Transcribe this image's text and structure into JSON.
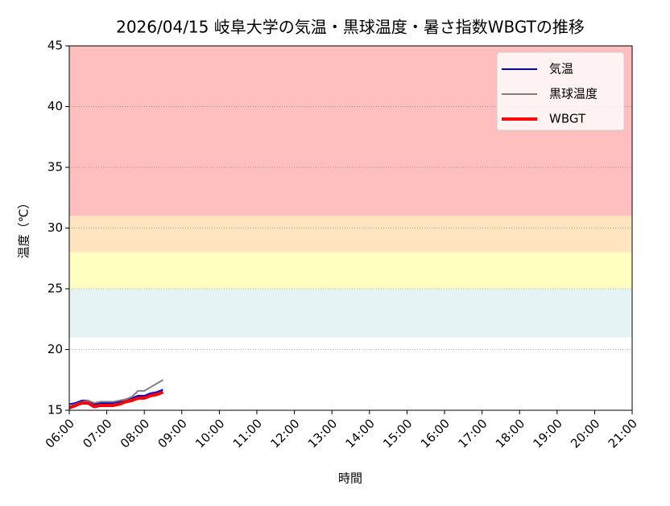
{
  "chart_data": {
    "type": "line",
    "title": "2026/04/15 岐阜大学の気温・黒球温度・暑さ指数WBGTの推移",
    "x_label": "時間",
    "y_label": "温度（℃）",
    "x": [
      "06:00",
      "06:10",
      "06:20",
      "06:30",
      "06:40",
      "06:50",
      "07:00",
      "07:10",
      "07:20",
      "07:30",
      "07:40",
      "07:50",
      "08:00",
      "08:10",
      "08:20",
      "08:30"
    ],
    "series": [
      {
        "name": "気温",
        "color": "#0000cc",
        "width": 2,
        "values": [
          15.5,
          15.6,
          15.8,
          15.8,
          15.5,
          15.6,
          15.6,
          15.6,
          15.7,
          15.9,
          16.0,
          16.2,
          16.2,
          16.4,
          16.5,
          16.7
        ]
      },
      {
        "name": "黒球温度",
        "color": "#808080",
        "width": 2,
        "values": [
          15.3,
          15.5,
          15.7,
          15.8,
          15.6,
          15.7,
          15.7,
          15.7,
          15.8,
          15.9,
          16.1,
          16.6,
          16.6,
          16.9,
          17.2,
          17.5
        ]
      },
      {
        "name": "WBGT",
        "color": "#ff0000",
        "width": 4,
        "values": [
          15.2,
          15.4,
          15.6,
          15.6,
          15.3,
          15.4,
          15.4,
          15.4,
          15.5,
          15.7,
          15.8,
          16.0,
          16.0,
          16.2,
          16.3,
          16.5
        ]
      }
    ],
    "bands": [
      {
        "from": 21,
        "to": 25,
        "color": "#e6f3f5"
      },
      {
        "from": 25,
        "to": 28,
        "color": "#ffffc0"
      },
      {
        "from": 28,
        "to": 31,
        "color": "#ffe4c0"
      },
      {
        "from": 31,
        "to": 45,
        "color": "#ffbfbf"
      }
    ],
    "xlim": [
      "06:00",
      "21:00"
    ],
    "xticks": [
      "06:00",
      "07:00",
      "08:00",
      "09:00",
      "10:00",
      "11:00",
      "12:00",
      "13:00",
      "14:00",
      "15:00",
      "16:00",
      "17:00",
      "18:00",
      "19:00",
      "20:00",
      "21:00"
    ],
    "ylim": [
      15,
      45
    ],
    "yticks": [
      15,
      20,
      25,
      30,
      35,
      40,
      45
    ],
    "grid": true,
    "legend": "upper-right"
  }
}
